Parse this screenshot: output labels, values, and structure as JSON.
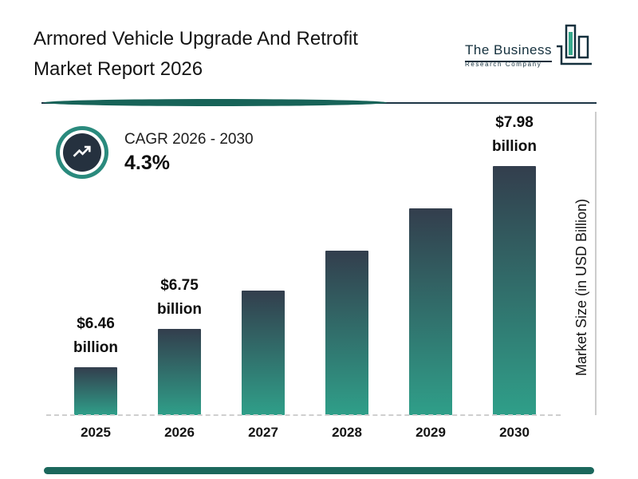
{
  "header": {
    "title_line1": "Armored Vehicle Upgrade And Retrofit",
    "title_line2": "Market Report 2026",
    "logo": {
      "name": "The Business",
      "sub": "Research Company"
    }
  },
  "cagr": {
    "label": "CAGR 2026 - 2030",
    "value": "4.3%"
  },
  "chart_data": {
    "type": "bar",
    "title": "Armored Vehicle Upgrade And Retrofit Market Report 2026",
    "categories": [
      "2025",
      "2026",
      "2027",
      "2028",
      "2029",
      "2030"
    ],
    "values": [
      6.46,
      6.75,
      7.04,
      7.34,
      7.66,
      7.98
    ],
    "unit": "USD Billion",
    "labels": [
      "$6.46 billion",
      "$6.75 billion",
      null,
      null,
      null,
      "$7.98 billion"
    ],
    "ylabel": "Market Size (in USD Billion)",
    "ylim": [
      6.1,
      8.0
    ],
    "grid": "off",
    "legend": "none",
    "bar_gradient_top": "#333e4d",
    "bar_gradient_bottom": "#2f9f89"
  },
  "colors": {
    "accent_teal": "#2a8a7d",
    "dark_navy": "#25313f",
    "footer_teal": "#1b675c"
  }
}
